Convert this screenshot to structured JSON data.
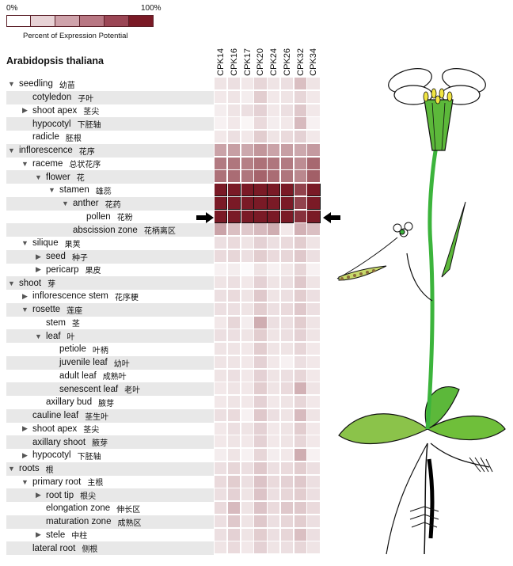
{
  "legend": {
    "min_label": "0%",
    "max_label": "100%",
    "caption": "Percent of Expression Potential",
    "colors": [
      "#ffffff",
      "#e8d3d6",
      "#cfa3ab",
      "#b87783",
      "#9b4655",
      "#7a1a26"
    ]
  },
  "title": "Arabidopsis thaliana",
  "chart_data": {
    "type": "heatmap",
    "title": "Arabidopsis thaliana",
    "color_scale_label": "Percent of Expression Potential",
    "color_scale_range": [
      "0%",
      "100%"
    ],
    "columns": [
      "CPK14",
      "CPK16",
      "CPK17",
      "CPK20",
      "CPK24",
      "CPK26",
      "CPK32",
      "CPK34"
    ],
    "rows": [
      {
        "en": "seedling",
        "zh": "幼苗",
        "indent": 0,
        "tri": "down",
        "values": [
          12,
          14,
          10,
          18,
          12,
          14,
          28,
          12
        ]
      },
      {
        "en": "cotyledon",
        "zh": "子叶",
        "indent": 1,
        "tri": "",
        "values": [
          10,
          12,
          8,
          22,
          10,
          12,
          18,
          10
        ]
      },
      {
        "en": "shoot apex",
        "zh": "茎尖",
        "indent": 1,
        "tri": "right",
        "values": [
          8,
          12,
          14,
          20,
          10,
          14,
          24,
          10
        ]
      },
      {
        "en": "hypocotyl",
        "zh": "下胚轴",
        "indent": 1,
        "tri": "",
        "values": [
          6,
          10,
          4,
          16,
          8,
          10,
          30,
          6
        ]
      },
      {
        "en": "radicle",
        "zh": "胚根",
        "indent": 1,
        "tri": "",
        "values": [
          10,
          14,
          10,
          22,
          12,
          16,
          20,
          10
        ]
      },
      {
        "en": "inflorescence",
        "zh": "花序",
        "indent": 0,
        "tri": "down",
        "values": [
          40,
          42,
          38,
          46,
          40,
          42,
          38,
          44
        ]
      },
      {
        "en": "raceme",
        "zh": "总状花序",
        "indent": 1,
        "tri": "down",
        "values": [
          58,
          60,
          56,
          62,
          60,
          58,
          50,
          66
        ]
      },
      {
        "en": "flower",
        "zh": "花",
        "indent": 2,
        "tri": "down",
        "values": [
          62,
          64,
          60,
          68,
          64,
          60,
          52,
          70
        ]
      },
      {
        "en": "stamen",
        "zh": "雄蕊",
        "indent": 3,
        "tri": "down",
        "values": [
          100,
          100,
          100,
          100,
          100,
          100,
          82,
          100
        ]
      },
      {
        "en": "anther",
        "zh": "花药",
        "indent": 4,
        "tri": "down",
        "values": [
          100,
          100,
          100,
          100,
          100,
          100,
          82,
          100
        ]
      },
      {
        "en": "pollen",
        "zh": "花粉",
        "indent": 5,
        "tri": "",
        "values": [
          100,
          100,
          100,
          100,
          100,
          100,
          90,
          100
        ]
      },
      {
        "en": "abscission zone",
        "zh": "花柄离区",
        "indent": 4,
        "tri": "",
        "values": [
          40,
          28,
          24,
          30,
          36,
          10,
          34,
          28
        ]
      },
      {
        "en": "silique",
        "zh": "果荚",
        "indent": 1,
        "tri": "down",
        "values": [
          14,
          16,
          12,
          20,
          14,
          16,
          22,
          12
        ]
      },
      {
        "en": "seed",
        "zh": "种子",
        "indent": 2,
        "tri": "right",
        "values": [
          16,
          18,
          14,
          22,
          16,
          18,
          24,
          14
        ]
      },
      {
        "en": "pericarp",
        "zh": "果皮",
        "indent": 2,
        "tri": "right",
        "values": [
          6,
          8,
          2,
          12,
          6,
          10,
          18,
          6
        ]
      },
      {
        "en": "shoot",
        "zh": "芽",
        "indent": 0,
        "tri": "down",
        "values": [
          12,
          14,
          10,
          20,
          12,
          14,
          24,
          12
        ]
      },
      {
        "en": "inflorescence stem",
        "zh": "花序梗",
        "indent": 1,
        "tri": "right",
        "values": [
          14,
          16,
          12,
          24,
          12,
          14,
          22,
          14
        ]
      },
      {
        "en": "rosette",
        "zh": "莲座",
        "indent": 1,
        "tri": "down",
        "values": [
          14,
          14,
          12,
          22,
          14,
          16,
          24,
          14
        ]
      },
      {
        "en": "stem",
        "zh": "茎",
        "indent": 2,
        "tri": "",
        "values": [
          10,
          18,
          8,
          36,
          14,
          14,
          22,
          12
        ]
      },
      {
        "en": "leaf",
        "zh": "叶",
        "indent": 2,
        "tri": "down",
        "values": [
          14,
          14,
          12,
          22,
          12,
          14,
          20,
          12
        ]
      },
      {
        "en": "petiole",
        "zh": "叶柄",
        "indent": 3,
        "tri": "",
        "values": [
          12,
          12,
          10,
          22,
          12,
          12,
          18,
          10
        ]
      },
      {
        "en": "juvenile leaf",
        "zh": "幼叶",
        "indent": 3,
        "tri": "",
        "values": [
          12,
          12,
          10,
          20,
          10,
          6,
          14,
          10
        ]
      },
      {
        "en": "adult leaf",
        "zh": "成熟叶",
        "indent": 3,
        "tri": "",
        "values": [
          12,
          14,
          10,
          20,
          12,
          14,
          18,
          10
        ]
      },
      {
        "en": "senescent leaf",
        "zh": "老叶",
        "indent": 3,
        "tri": "",
        "values": [
          10,
          12,
          10,
          22,
          12,
          16,
          34,
          12
        ]
      },
      {
        "en": "axillary bud",
        "zh": "腋芽",
        "indent": 2,
        "tri": "",
        "values": [
          10,
          12,
          10,
          20,
          10,
          12,
          18,
          10
        ]
      },
      {
        "en": "cauline leaf",
        "zh": "茎生叶",
        "indent": 1,
        "tri": "",
        "values": [
          14,
          16,
          6,
          24,
          14,
          12,
          30,
          12
        ]
      },
      {
        "en": "shoot apex",
        "zh": "茎尖",
        "indent": 1,
        "tri": "right",
        "values": [
          10,
          14,
          12,
          20,
          10,
          12,
          22,
          10
        ]
      },
      {
        "en": "axillary shoot",
        "zh": "腋芽",
        "indent": 1,
        "tri": "",
        "values": [
          10,
          12,
          10,
          20,
          10,
          12,
          18,
          10
        ]
      },
      {
        "en": "hypocotyl",
        "zh": "下胚轴",
        "indent": 1,
        "tri": "right",
        "values": [
          8,
          12,
          6,
          18,
          8,
          10,
          36,
          6
        ]
      },
      {
        "en": "roots",
        "zh": "根",
        "indent": 0,
        "tri": "down",
        "values": [
          14,
          18,
          14,
          24,
          14,
          16,
          22,
          14
        ]
      },
      {
        "en": "primary root",
        "zh": "主根",
        "indent": 1,
        "tri": "down",
        "values": [
          16,
          22,
          14,
          26,
          16,
          20,
          24,
          14
        ]
      },
      {
        "en": "root tip",
        "zh": "根尖",
        "indent": 2,
        "tri": "right",
        "values": [
          14,
          20,
          12,
          26,
          14,
          18,
          22,
          14
        ]
      },
      {
        "en": "elongation zone",
        "zh": "伸长区",
        "indent": 2,
        "tri": "",
        "values": [
          16,
          30,
          12,
          26,
          16,
          24,
          24,
          16
        ]
      },
      {
        "en": "maturation zone",
        "zh": "成熟区",
        "indent": 2,
        "tri": "",
        "values": [
          14,
          24,
          12,
          24,
          14,
          18,
          22,
          14
        ]
      },
      {
        "en": "stele",
        "zh": "中柱",
        "indent": 2,
        "tri": "right",
        "values": [
          14,
          20,
          12,
          22,
          14,
          18,
          28,
          14
        ]
      },
      {
        "en": "lateral root",
        "zh": "侧根",
        "indent": 1,
        "tri": "",
        "values": [
          12,
          16,
          10,
          20,
          12,
          14,
          18,
          12
        ]
      }
    ],
    "highlighted_row": "pollen"
  }
}
